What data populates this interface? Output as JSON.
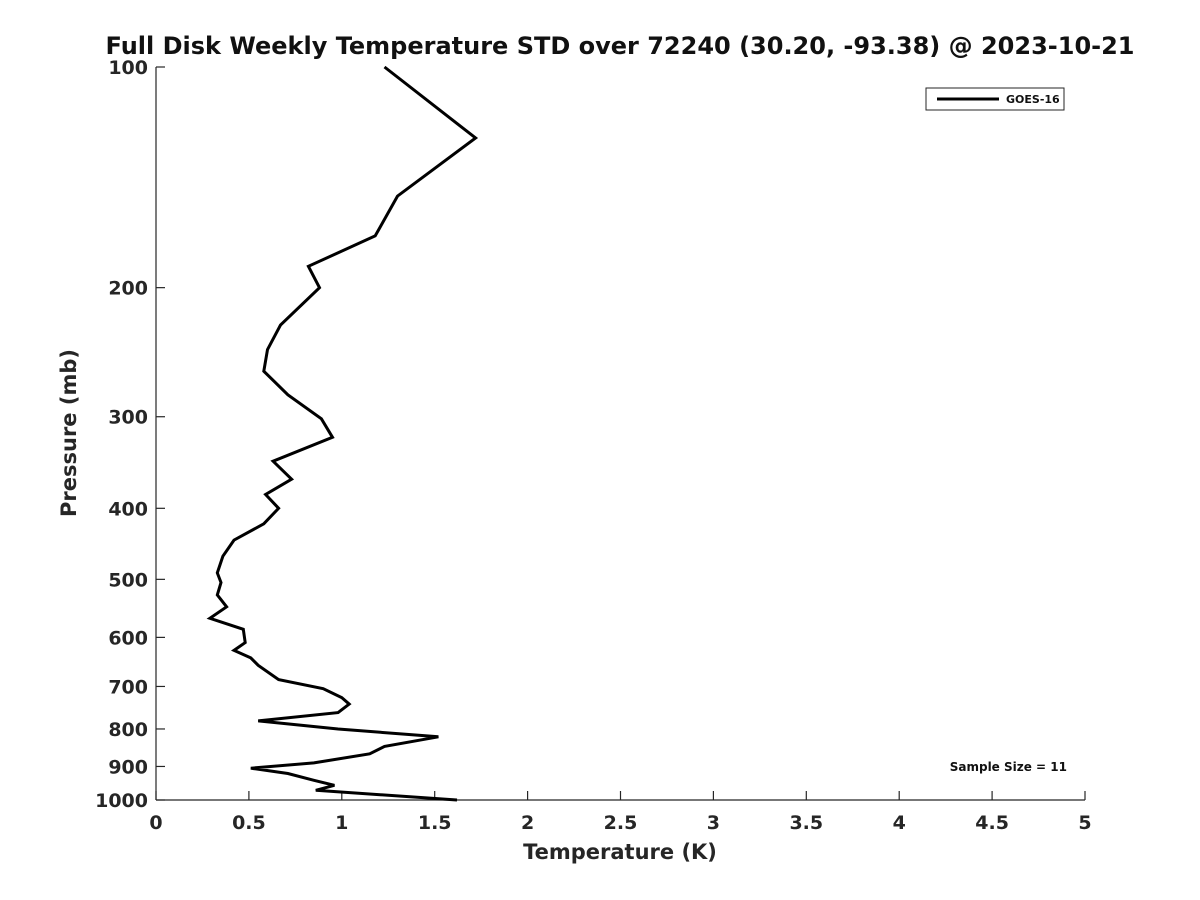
{
  "chart_data": {
    "type": "line",
    "title": "Full Disk Weekly Temperature STD over 72240 (30.20, -93.38) @ 2023-10-21",
    "xlabel": "Temperature (K)",
    "ylabel": "Pressure (mb)",
    "xlim": [
      0,
      5
    ],
    "ylim": [
      100,
      1000
    ],
    "y_scale": "log",
    "y_reversed": true,
    "x_ticks": [
      "0",
      "0.5",
      "1",
      "1.5",
      "2",
      "2.5",
      "3",
      "3.5",
      "4",
      "4.5",
      "5"
    ],
    "y_ticks": [
      100,
      200,
      300,
      400,
      500,
      600,
      700,
      800,
      900,
      1000
    ],
    "grid": false,
    "legend_position": "top-right",
    "annotation": "Sample Size = 11",
    "series": [
      {
        "name": "GOES-16",
        "color": "#000000",
        "points": [
          [
            1.23,
            100
          ],
          [
            1.72,
            125
          ],
          [
            1.3,
            150
          ],
          [
            1.18,
            170
          ],
          [
            0.82,
            187
          ],
          [
            0.88,
            200
          ],
          [
            0.67,
            225
          ],
          [
            0.6,
            243
          ],
          [
            0.58,
            260
          ],
          [
            0.71,
            280
          ],
          [
            0.89,
            302
          ],
          [
            0.95,
            320
          ],
          [
            0.63,
            345
          ],
          [
            0.73,
            365
          ],
          [
            0.59,
            383
          ],
          [
            0.66,
            400
          ],
          [
            0.58,
            420
          ],
          [
            0.42,
            442
          ],
          [
            0.36,
            465
          ],
          [
            0.33,
            490
          ],
          [
            0.35,
            505
          ],
          [
            0.33,
            525
          ],
          [
            0.38,
            545
          ],
          [
            0.29,
            565
          ],
          [
            0.47,
            585
          ],
          [
            0.48,
            610
          ],
          [
            0.42,
            625
          ],
          [
            0.51,
            640
          ],
          [
            0.55,
            655
          ],
          [
            0.66,
            685
          ],
          [
            0.9,
            705
          ],
          [
            1.0,
            725
          ],
          [
            1.04,
            740
          ],
          [
            0.98,
            760
          ],
          [
            0.55,
            780
          ],
          [
            0.98,
            800
          ],
          [
            1.52,
            820
          ],
          [
            1.23,
            845
          ],
          [
            1.15,
            865
          ],
          [
            0.85,
            890
          ],
          [
            0.51,
            905
          ],
          [
            0.71,
            920
          ],
          [
            0.85,
            940
          ],
          [
            0.96,
            955
          ],
          [
            0.86,
            970
          ],
          [
            1.62,
            1000
          ]
        ]
      }
    ]
  }
}
